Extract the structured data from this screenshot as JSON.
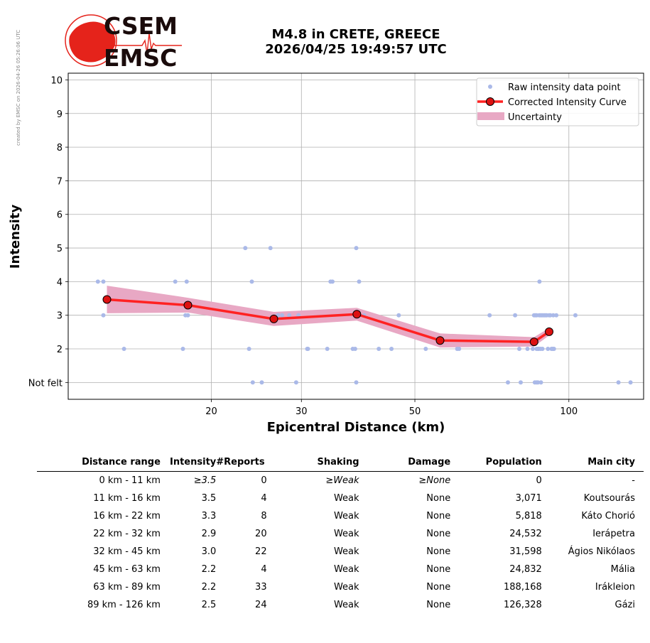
{
  "credit": "created by EMSC on 2026-04-26 05:26:06 UTC",
  "logo": {
    "top_text": "CSEM",
    "bottom_text": "EMSC",
    "color_red": "#e5231b",
    "color_dark": "#1a0b0b"
  },
  "title": {
    "line1": "M4.8 in CRETE, GREECE",
    "line2": "2026/04/25 19:49:57 UTC"
  },
  "chart_data": {
    "type": "scatter",
    "title": "M4.8 in CRETE, GREECE 2026/04/25 19:49:57 UTC",
    "xlabel": "Epicentral Distance (km)",
    "ylabel": "Intensity",
    "x_scale": "log",
    "xlim": [
      10.5,
      140
    ],
    "ylim": [
      0.5,
      10.2
    ],
    "x_ticks": [
      20,
      30,
      50,
      100
    ],
    "y_ticks": [
      1,
      2,
      3,
      4,
      5,
      6,
      7,
      8,
      9,
      10
    ],
    "y_tick_labels": [
      "Not felt",
      "2",
      "3",
      "4",
      "5",
      "6",
      "7",
      "8",
      "9",
      "10"
    ],
    "grid": true,
    "legend": {
      "position": "top-right",
      "entries": [
        "Raw intensity data point",
        "Corrected Intensity Curve",
        "Uncertainty"
      ]
    },
    "colors": {
      "raw": "#aab9e8",
      "curve": "#ff2222",
      "marker": "#dd1111",
      "uncertainty": "#e8a8c4"
    },
    "raw_points": [
      [
        12.0,
        4
      ],
      [
        12.3,
        4
      ],
      [
        12.3,
        3
      ],
      [
        13.5,
        2
      ],
      [
        17.0,
        4
      ],
      [
        17.6,
        2
      ],
      [
        17.9,
        4
      ],
      [
        17.8,
        3
      ],
      [
        18.0,
        3
      ],
      [
        23.3,
        5
      ],
      [
        23.7,
        2
      ],
      [
        24.0,
        4
      ],
      [
        24.1,
        1
      ],
      [
        25.1,
        1
      ],
      [
        26.1,
        5
      ],
      [
        27.0,
        3
      ],
      [
        27.5,
        3
      ],
      [
        28.4,
        3
      ],
      [
        29.6,
        3
      ],
      [
        29.3,
        1
      ],
      [
        30.8,
        2
      ],
      [
        30.9,
        2
      ],
      [
        33.7,
        2
      ],
      [
        34.2,
        4
      ],
      [
        34.5,
        4
      ],
      [
        37.8,
        2
      ],
      [
        38.2,
        2
      ],
      [
        38.4,
        5
      ],
      [
        38.4,
        1
      ],
      [
        38.9,
        4
      ],
      [
        39.8,
        3
      ],
      [
        42.5,
        2
      ],
      [
        45.0,
        2
      ],
      [
        46.5,
        3
      ],
      [
        52.5,
        2
      ],
      [
        60.5,
        2
      ],
      [
        61.0,
        2
      ],
      [
        70.0,
        3
      ],
      [
        76.0,
        1
      ],
      [
        78.5,
        3
      ],
      [
        80.0,
        2
      ],
      [
        80.5,
        1
      ],
      [
        83.0,
        2
      ],
      [
        85.0,
        2
      ],
      [
        85.5,
        3
      ],
      [
        86.0,
        3
      ],
      [
        86.5,
        3
      ],
      [
        86.5,
        2
      ],
      [
        87.0,
        2
      ],
      [
        87.3,
        2
      ],
      [
        87.5,
        3
      ],
      [
        87.6,
        4
      ],
      [
        88.0,
        3
      ],
      [
        88.0,
        2
      ],
      [
        88.2,
        1
      ],
      [
        88.5,
        3
      ],
      [
        88.8,
        2
      ],
      [
        89.0,
        3
      ],
      [
        89.5,
        3
      ],
      [
        90.0,
        3
      ],
      [
        90.5,
        3
      ],
      [
        91.0,
        2
      ],
      [
        91.5,
        3
      ],
      [
        92.0,
        3
      ],
      [
        92.5,
        2
      ],
      [
        93.0,
        2
      ],
      [
        93.2,
        3
      ],
      [
        93.5,
        2
      ],
      [
        94.5,
        3
      ],
      [
        103.0,
        3
      ],
      [
        85.8,
        1
      ],
      [
        86.5,
        1
      ],
      [
        87.0,
        1
      ],
      [
        125.0,
        1
      ],
      [
        132.0,
        1
      ]
    ],
    "curve": {
      "x": [
        12.5,
        18.0,
        26.5,
        38.5,
        56.0,
        85.5,
        91.5
      ],
      "y": [
        3.47,
        3.3,
        2.89,
        3.03,
        2.25,
        2.21,
        2.51
      ]
    },
    "uncertainty": {
      "x": [
        12.5,
        18.0,
        26.5,
        38.5,
        56.0,
        85.5,
        91.5
      ],
      "upper": [
        3.88,
        3.52,
        3.1,
        3.22,
        2.46,
        2.35,
        2.62
      ],
      "lower": [
        3.06,
        3.08,
        2.68,
        2.84,
        2.04,
        2.07,
        2.4
      ]
    }
  },
  "table": {
    "headers": [
      "Distance range",
      "Intensity",
      "#Reports",
      "Shaking",
      "Damage",
      "Population",
      "Main city"
    ],
    "rows": [
      {
        "range": "0 km -   11 km",
        "intensity": "≥3.5",
        "reports": "0",
        "shaking": "≥Weak",
        "damage": "≥None",
        "population": "0",
        "city": "-"
      },
      {
        "range": "11 km -   16 km",
        "intensity": "3.5",
        "reports": "4",
        "shaking": "Weak",
        "damage": "None",
        "population": "3,071",
        "city": "Koutsourás"
      },
      {
        "range": "16 km -   22 km",
        "intensity": "3.3",
        "reports": "8",
        "shaking": "Weak",
        "damage": "None",
        "population": "5,818",
        "city": "Káto Chorió"
      },
      {
        "range": "22 km -   32 km",
        "intensity": "2.9",
        "reports": "20",
        "shaking": "Weak",
        "damage": "None",
        "population": "24,532",
        "city": "Ierápetra"
      },
      {
        "range": "32 km -   45 km",
        "intensity": "3.0",
        "reports": "22",
        "shaking": "Weak",
        "damage": "None",
        "population": "31,598",
        "city": "Ágios Nikólaos"
      },
      {
        "range": "45 km -   63 km",
        "intensity": "2.2",
        "reports": "4",
        "shaking": "Weak",
        "damage": "None",
        "population": "24,832",
        "city": "Mália"
      },
      {
        "range": "63 km -   89 km",
        "intensity": "2.2",
        "reports": "33",
        "shaking": "Weak",
        "damage": "None",
        "population": "188,168",
        "city": "Irákleion"
      },
      {
        "range": "89 km -  126 km",
        "intensity": "2.5",
        "reports": "24",
        "shaking": "Weak",
        "damage": "None",
        "population": "126,328",
        "city": "Gázi"
      }
    ]
  }
}
